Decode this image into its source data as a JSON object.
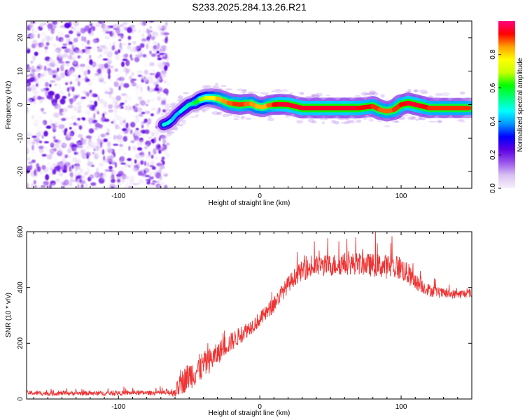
{
  "title": "S233.2025.284.13.26.R21",
  "chart_data": [
    {
      "type": "heatmap",
      "xlabel": "Height of straight line (km)",
      "ylabel": "Frequency (Hz)",
      "xlim": [
        -165,
        150
      ],
      "ylim": [
        -25,
        25
      ],
      "x_ticks": [
        -100,
        0,
        100
      ],
      "y_ticks": [
        -20,
        -10,
        0,
        10,
        20
      ],
      "colorbar": {
        "label": "Normalized spectral amplitude",
        "range": [
          0,
          1
        ],
        "ticks": [
          "0.0",
          "0.2",
          "0.4",
          "0.6",
          "0.8"
        ],
        "stops": [
          "#f8f0fb",
          "#d9c2f2",
          "#9a55ec",
          "#5e00e4",
          "#0000ff",
          "#0096ff",
          "#00ffff",
          "#00ff80",
          "#00ff00",
          "#c8ff00",
          "#ffff00",
          "#ffa000",
          "#ff0000",
          "#ff0080"
        ]
      },
      "noise_region_x": [
        -165,
        -65
      ],
      "signal_track": {
        "x": [
          -68,
          -65,
          -62,
          -59,
          -56,
          -53,
          -50,
          -46,
          -42,
          -38,
          -34,
          -30,
          -26,
          -22,
          -18,
          -14,
          -10,
          -6,
          -2,
          2,
          6,
          10,
          14,
          20,
          30,
          40,
          50,
          60,
          70,
          80,
          85,
          90,
          95,
          100,
          105,
          110,
          115,
          120,
          130,
          140,
          148
        ],
        "freq": [
          -6,
          -5.5,
          -4.5,
          -3,
          -2,
          -1,
          0,
          0.5,
          1.5,
          2,
          2,
          1.8,
          1.2,
          0.5,
          0.2,
          0,
          0.2,
          0.3,
          -0.5,
          -0.8,
          -0.2,
          0,
          0.1,
          0,
          -1,
          -1,
          -1,
          -1,
          -1,
          -0.5,
          -1.5,
          -2,
          -1.5,
          0,
          0.5,
          0,
          -0.5,
          -1,
          -1,
          -1,
          -1
        ],
        "amp": [
          0.5,
          0.5,
          0.45,
          0.4,
          0.45,
          0.5,
          0.5,
          0.55,
          0.65,
          0.7,
          0.75,
          0.8,
          0.85,
          0.85,
          0.9,
          0.9,
          0.9,
          0.85,
          0.85,
          0.8,
          0.85,
          0.9,
          0.95,
          0.95,
          0.95,
          0.95,
          0.95,
          0.95,
          0.95,
          0.9,
          0.9,
          0.85,
          0.9,
          0.9,
          0.95,
          0.95,
          0.95,
          0.9,
          0.9,
          0.9,
          0.9
        ]
      }
    },
    {
      "type": "line",
      "xlabel": "Height of straight line (km)",
      "ylabel": "SNR (10 * v/v)",
      "xlim": [
        -165,
        150
      ],
      "ylim": [
        0,
        600
      ],
      "x_ticks": [
        -100,
        0,
        100
      ],
      "y_ticks": [
        0,
        200,
        400,
        600
      ],
      "color": "#ee3333",
      "series": [
        {
          "name": "SNR",
          "x": [
            -165,
            -150,
            -130,
            -110,
            -90,
            -70,
            -60,
            -58,
            -55,
            -50,
            -45,
            -40,
            -35,
            -30,
            -25,
            -20,
            -15,
            -10,
            -5,
            0,
            5,
            10,
            15,
            20,
            25,
            30,
            40,
            50,
            60,
            70,
            80,
            90,
            100,
            110,
            120,
            130,
            140,
            150
          ],
          "y": [
            22,
            20,
            21,
            20,
            22,
            22,
            25,
            40,
            60,
            85,
            100,
            120,
            140,
            160,
            190,
            205,
            225,
            245,
            265,
            285,
            310,
            340,
            375,
            410,
            440,
            460,
            475,
            480,
            485,
            485,
            480,
            475,
            470,
            420,
            390,
            378,
            375,
            380
          ],
          "noise": [
            8,
            8,
            8,
            8,
            8,
            8,
            18,
            30,
            45,
            50,
            55,
            50,
            45,
            40,
            38,
            35,
            32,
            30,
            28,
            28,
            28,
            30,
            30,
            30,
            32,
            35,
            38,
            40,
            40,
            40,
            42,
            45,
            45,
            30,
            22,
            18,
            16,
            16
          ]
        }
      ]
    }
  ]
}
